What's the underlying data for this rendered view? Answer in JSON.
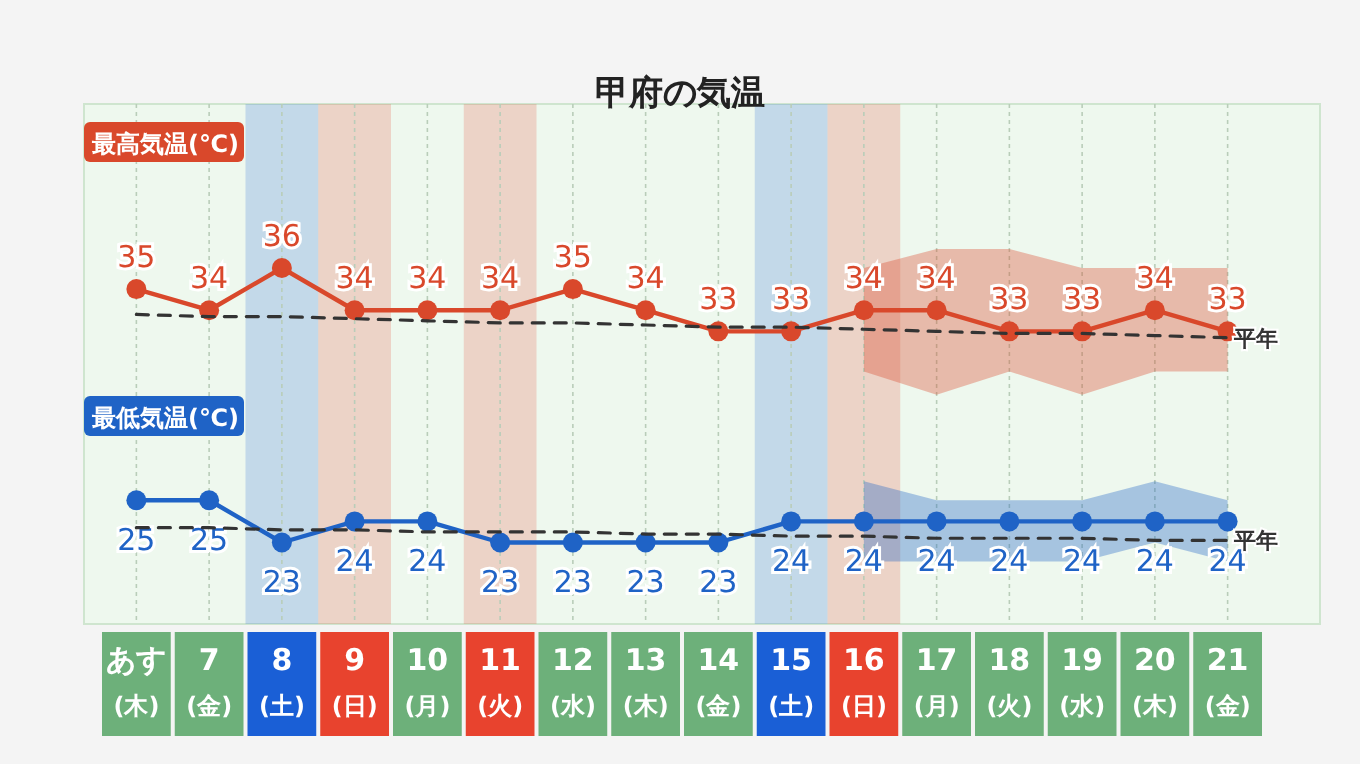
{
  "chart_data": {
    "type": "line",
    "title": "甲府の気温",
    "categories": [
      "あす\n(木)",
      "7\n(金)",
      "8\n(土)",
      "9\n(日)",
      "10\n(月)",
      "11\n(火)",
      "12\n(水)",
      "13\n(木)",
      "14\n(金)",
      "15\n(土)",
      "16\n(日)",
      "17\n(月)",
      "18\n(火)",
      "19\n(水)",
      "20\n(木)",
      "21\n(金)"
    ],
    "marker": "circle",
    "grid": "x",
    "series": [
      {
        "name": "最高気温(℃)",
        "color": "#d9482b",
        "values": [
          35,
          34,
          36,
          34,
          34,
          34,
          35,
          34,
          33,
          33,
          34,
          34,
          33,
          33,
          34,
          33
        ],
        "value_labels": [
          "35",
          "34",
          "36",
          "34",
          "34",
          "34",
          "35",
          "34",
          "33",
          "33",
          "34",
          "34",
          "33",
          "33",
          "34",
          "33"
        ],
        "lower": [
          null,
          null,
          null,
          null,
          null,
          null,
          null,
          null,
          null,
          null,
          31.1,
          30.0,
          31.1,
          30.0,
          31.1,
          31.1
        ],
        "upper": [
          null,
          null,
          null,
          null,
          null,
          null,
          null,
          null,
          null,
          null,
          36.0,
          36.9,
          36.9,
          36.0,
          36.0,
          36.0
        ]
      },
      {
        "name": "平年",
        "color": "#333333",
        "line_style": "dashed",
        "marker": "none",
        "values": [
          33.8,
          33.7,
          33.7,
          33.6,
          33.5,
          33.4,
          33.4,
          33.3,
          33.2,
          33.2,
          33.1,
          33.0,
          32.9,
          32.9,
          32.8,
          32.7
        ]
      },
      {
        "name": "最低気温(℃)",
        "color": "#1f63c6",
        "values": [
          25,
          25,
          23,
          24,
          24,
          23,
          23,
          23,
          23,
          24,
          24,
          24,
          24,
          24,
          24,
          24
        ],
        "value_labels": [
          "25",
          "25",
          "23",
          "24",
          "24",
          "23",
          "23",
          "23",
          "23",
          "24",
          "24",
          "24",
          "24",
          "24",
          "24",
          "24"
        ],
        "lower": [
          null,
          null,
          null,
          null,
          null,
          null,
          null,
          null,
          null,
          null,
          22.1,
          22.1,
          22.1,
          22.1,
          23.0,
          22.1
        ],
        "upper": [
          null,
          null,
          null,
          null,
          null,
          null,
          null,
          null,
          null,
          null,
          25.9,
          25.0,
          25.0,
          25.0,
          25.9,
          25.0
        ]
      },
      {
        "name": "平年",
        "color": "#333333",
        "line_style": "dashed",
        "marker": "none",
        "values": [
          23.7,
          23.7,
          23.6,
          23.6,
          23.5,
          23.5,
          23.5,
          23.4,
          23.4,
          23.3,
          23.3,
          23.2,
          23.2,
          23.2,
          23.1,
          23.1
        ]
      }
    ],
    "bands": [
      {
        "axis": "x",
        "from": "8\n(土)",
        "to": "8\n(土)",
        "color": "#1a5fd6"
      },
      {
        "axis": "x",
        "from": "9\n(日)",
        "to": "9\n(日)",
        "color": "#e8432e"
      },
      {
        "axis": "x",
        "from": "11\n(火)",
        "to": "11\n(火)",
        "color": "#e8432e"
      },
      {
        "axis": "x",
        "from": "15\n(土)",
        "to": "15\n(土)",
        "color": "#1a5fd6"
      },
      {
        "axis": "x",
        "from": "16\n(日)",
        "to": "16\n(日)",
        "color": "#e8432e"
      }
    ]
  }
}
